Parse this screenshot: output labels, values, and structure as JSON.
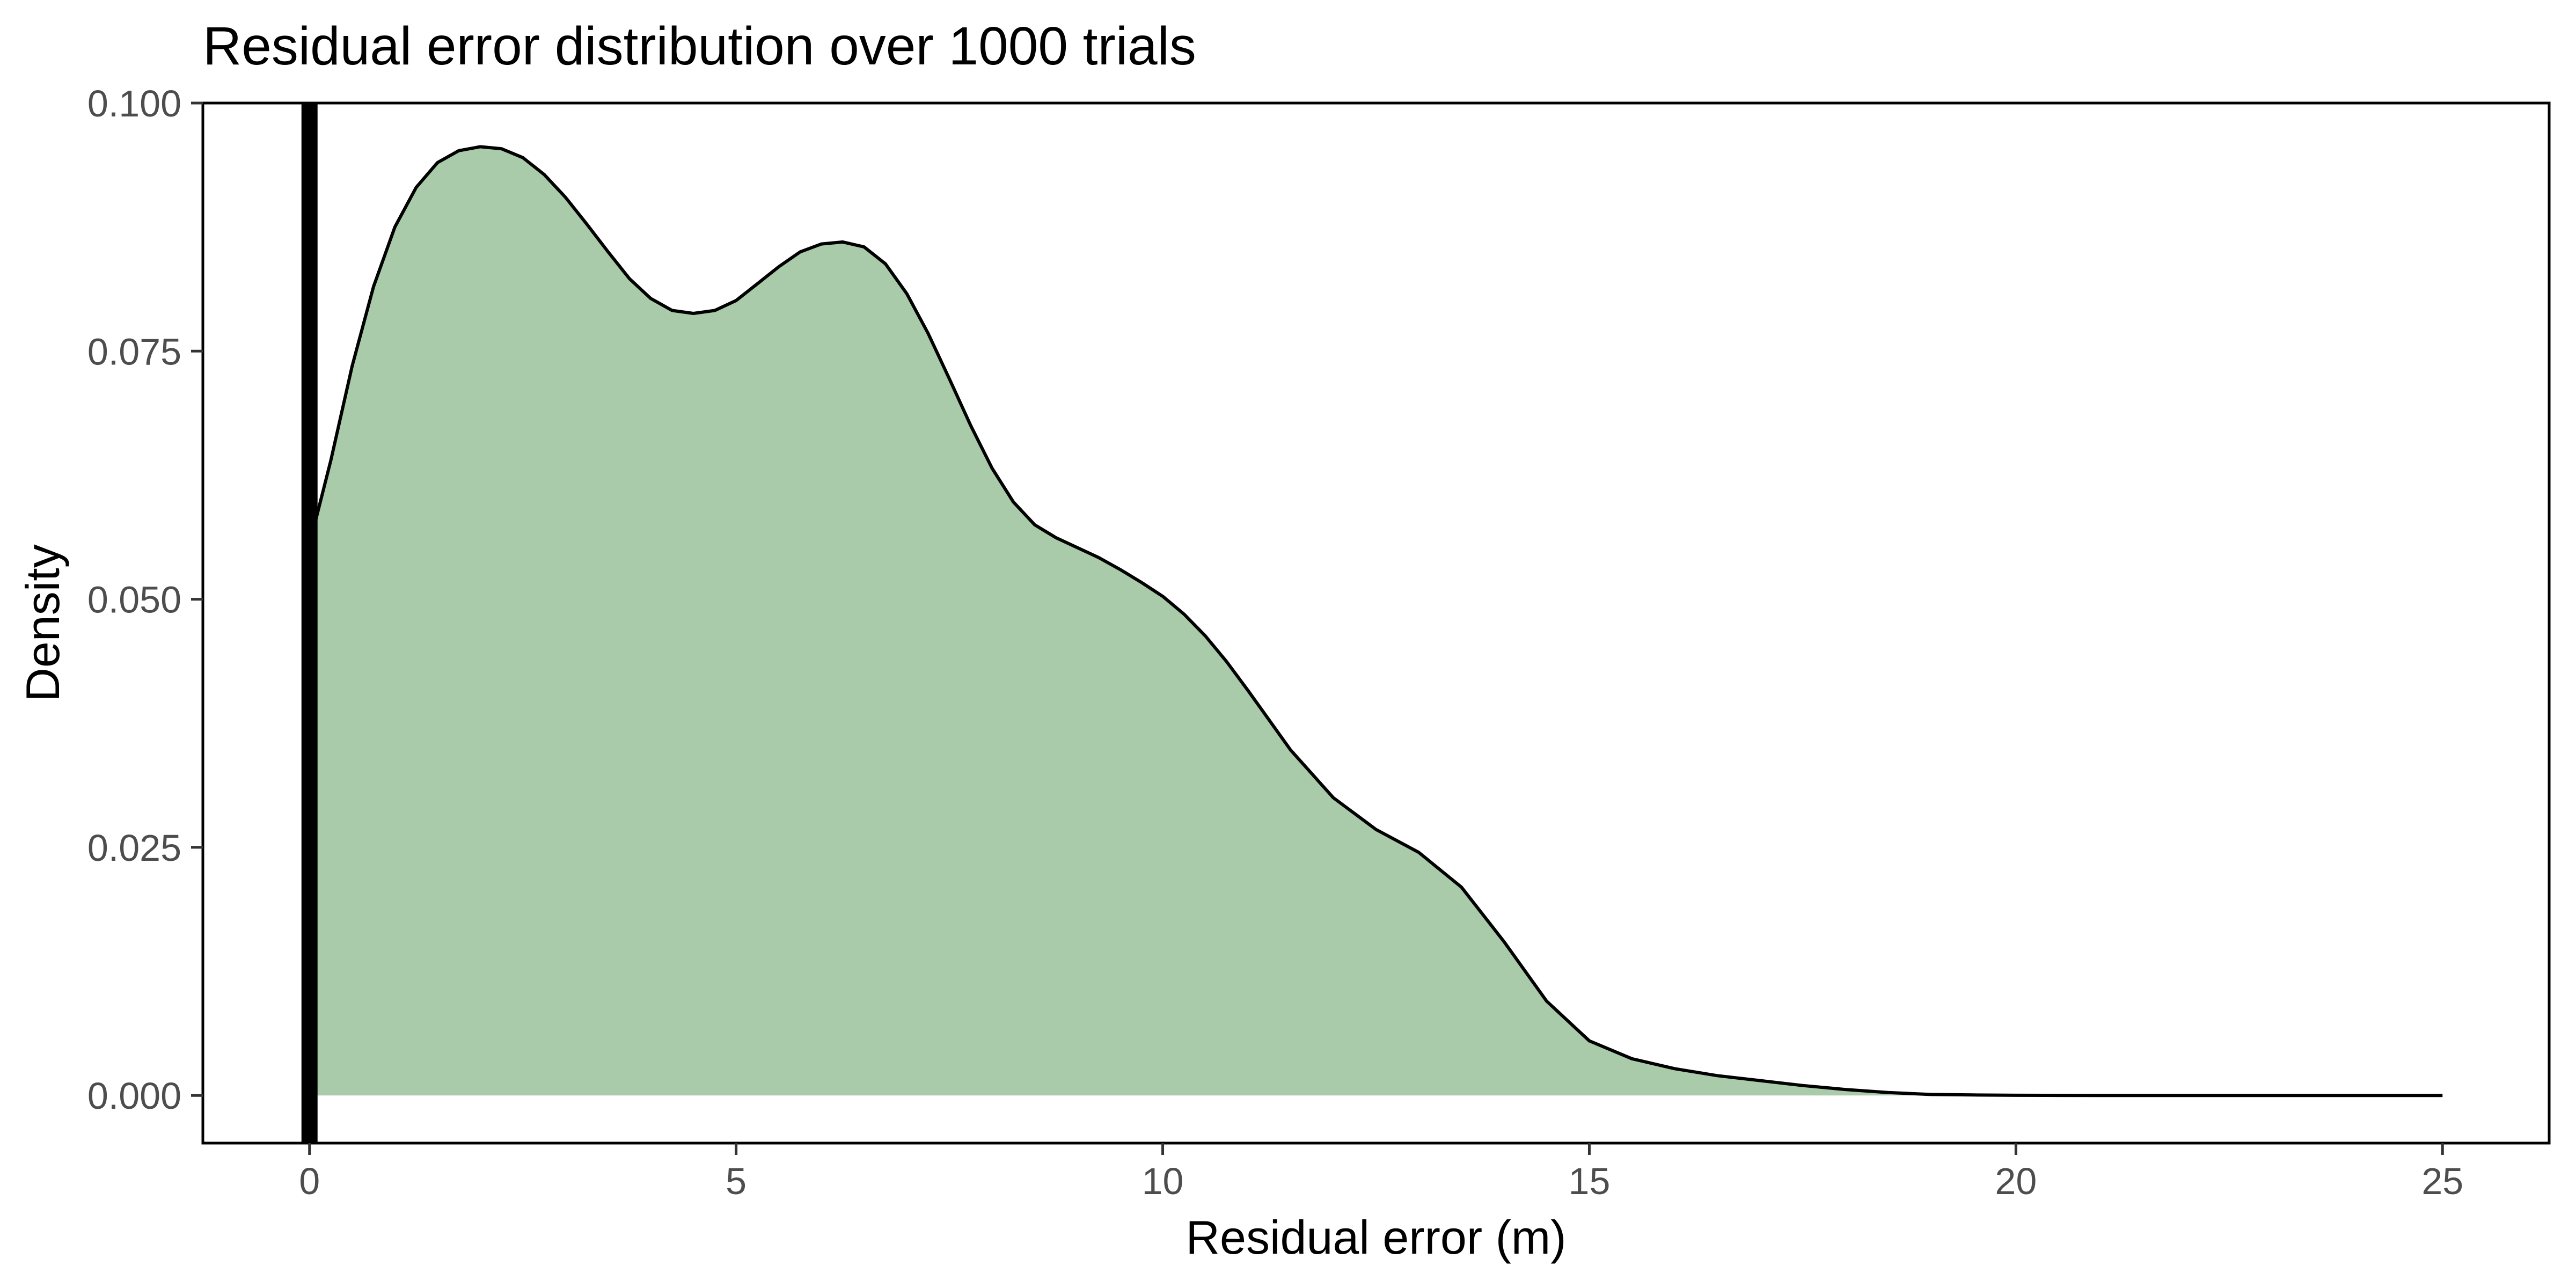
{
  "chart_data": {
    "type": "area",
    "title": "Residual error distribution over 1000 trials",
    "xlabel": "Residual error (m)",
    "ylabel": "Density",
    "xlim": [
      -1.25,
      26.25
    ],
    "ylim": [
      -0.0048,
      0.1
    ],
    "x_ticks": [
      0,
      5,
      10,
      15,
      20,
      25
    ],
    "x_tick_labels": [
      "0",
      "5",
      "10",
      "15",
      "20",
      "25"
    ],
    "y_ticks": [
      0.0,
      0.025,
      0.05,
      0.075,
      0.1
    ],
    "y_tick_labels": [
      "0.000",
      "0.025",
      "0.050",
      "0.075",
      "0.100"
    ],
    "grid": false,
    "legend": "none",
    "reference_line": {
      "x": 0,
      "color": "#000000"
    },
    "series": [
      {
        "x": [
          0,
          0.25,
          0.5,
          0.75,
          1.0,
          1.25,
          1.5,
          1.75,
          2.0,
          2.25,
          2.5,
          2.75,
          3.0,
          3.25,
          3.5,
          3.75,
          4.0,
          4.25,
          4.5,
          4.75,
          5.0,
          5.25,
          5.5,
          5.75,
          6.0,
          6.25,
          6.5,
          6.75,
          7.0,
          7.25,
          7.5,
          7.75,
          8.0,
          8.25,
          8.5,
          8.75,
          9.0,
          9.25,
          9.5,
          9.75,
          10.0,
          10.25,
          10.5,
          10.75,
          11.0,
          11.5,
          12.0,
          12.5,
          13.0,
          13.5,
          14.0,
          14.5,
          15.0,
          15.5,
          16.0,
          16.5,
          17.0,
          17.5,
          18.0,
          18.5,
          19.0,
          19.5,
          20.0,
          20.5,
          21.0,
          22.0,
          23.0,
          24.0,
          25.0
        ],
        "y": [
          0.0555,
          0.064,
          0.0735,
          0.0815,
          0.0875,
          0.0915,
          0.094,
          0.0952,
          0.0956,
          0.0954,
          0.0945,
          0.0928,
          0.0905,
          0.0878,
          0.085,
          0.0823,
          0.0803,
          0.0791,
          0.0788,
          0.0791,
          0.0801,
          0.0818,
          0.0835,
          0.085,
          0.0858,
          0.086,
          0.0855,
          0.0838,
          0.0808,
          0.0768,
          0.0722,
          0.0675,
          0.0632,
          0.0598,
          0.0575,
          0.0562,
          0.0552,
          0.0542,
          0.053,
          0.0517,
          0.0503,
          0.0485,
          0.0463,
          0.0437,
          0.0408,
          0.0348,
          0.03,
          0.0268,
          0.0245,
          0.021,
          0.0155,
          0.0095,
          0.0055,
          0.0037,
          0.0027,
          0.002,
          0.0015,
          0.001,
          0.0006,
          0.0003,
          0.0001,
          5e-05,
          2e-05,
          1e-05,
          0.0,
          0.0,
          0.0,
          0.0,
          0.0
        ],
        "fill": "#a9cba9",
        "stroke": "#000000"
      }
    ]
  }
}
